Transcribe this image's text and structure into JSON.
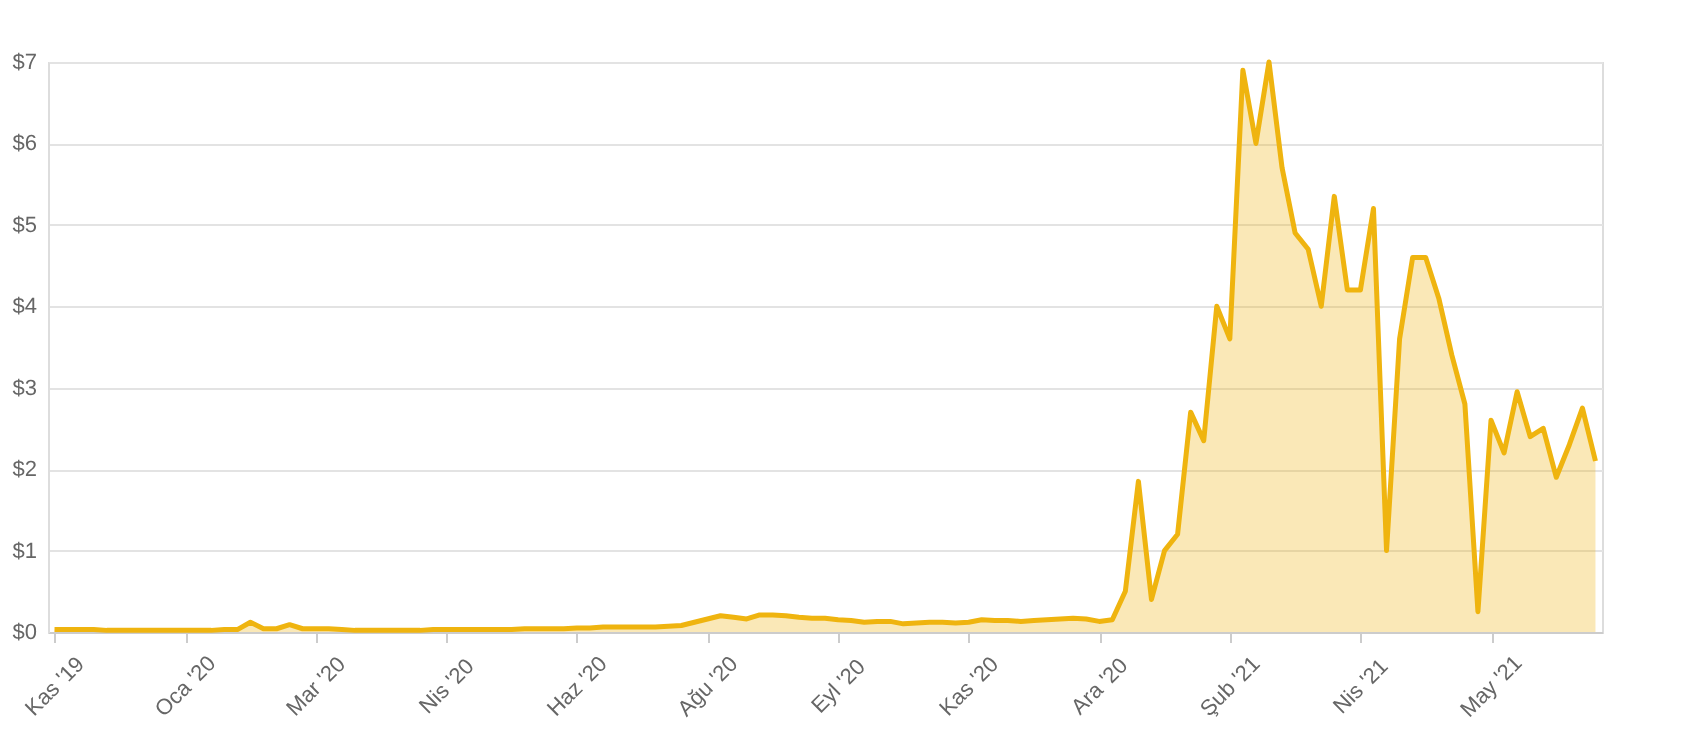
{
  "chart_data": {
    "type": "area",
    "grid": "y",
    "categories": [
      "Kas '19",
      null,
      null,
      null,
      null,
      null,
      null,
      null,
      null,
      null,
      "Oca '20",
      null,
      null,
      null,
      null,
      null,
      null,
      null,
      null,
      null,
      "Mar '20",
      null,
      null,
      null,
      null,
      null,
      null,
      null,
      null,
      null,
      "Nis '20",
      null,
      null,
      null,
      null,
      null,
      null,
      null,
      null,
      null,
      "Haz '20",
      null,
      null,
      null,
      null,
      null,
      null,
      null,
      null,
      null,
      "Ağu '20",
      null,
      null,
      null,
      null,
      null,
      null,
      null,
      null,
      null,
      "Eyl '20",
      null,
      null,
      null,
      null,
      null,
      null,
      null,
      null,
      null,
      "Kas '20",
      null,
      null,
      null,
      null,
      null,
      null,
      null,
      null,
      null,
      "Ara '20",
      null,
      null,
      null,
      null,
      null,
      null,
      null,
      null,
      null,
      "Şub '21",
      null,
      null,
      null,
      null,
      null,
      null,
      null,
      null,
      null,
      "Nis '21",
      null,
      null,
      null,
      null,
      null,
      null,
      null,
      null,
      null,
      "May '21",
      null,
      null,
      null,
      null,
      null,
      null,
      null,
      null
    ],
    "ylim": [
      0,
      7
    ],
    "yticks": [
      {
        "value": 0,
        "label": "$0"
      },
      {
        "value": 1,
        "label": "$1"
      },
      {
        "value": 2,
        "label": "$2"
      },
      {
        "value": 3,
        "label": "$3"
      },
      {
        "value": 4,
        "label": "$4"
      },
      {
        "value": 5,
        "label": "$5"
      },
      {
        "value": 6,
        "label": "$6"
      },
      {
        "value": 7,
        "label": "$7"
      }
    ],
    "series": [
      {
        "color": "#efb40f",
        "values": [
          0.03,
          0.03,
          0.03,
          0.03,
          0.02,
          0.02,
          0.02,
          0.02,
          0.02,
          0.02,
          0.02,
          0.02,
          0.02,
          0.03,
          0.03,
          0.12,
          0.04,
          0.04,
          0.09,
          0.04,
          0.04,
          0.04,
          0.03,
          0.02,
          0.02,
          0.02,
          0.02,
          0.02,
          0.02,
          0.03,
          0.03,
          0.03,
          0.03,
          0.03,
          0.03,
          0.03,
          0.04,
          0.04,
          0.04,
          0.04,
          0.05,
          0.05,
          0.06,
          0.06,
          0.06,
          0.06,
          0.06,
          0.07,
          0.08,
          0.12,
          0.16,
          0.2,
          0.18,
          0.16,
          0.21,
          0.21,
          0.2,
          0.18,
          0.17,
          0.17,
          0.15,
          0.14,
          0.12,
          0.13,
          0.13,
          0.1,
          0.11,
          0.12,
          0.12,
          0.11,
          0.12,
          0.15,
          0.14,
          0.14,
          0.13,
          0.14,
          0.15,
          0.16,
          0.17,
          0.16,
          0.13,
          0.15,
          0.5,
          1.85,
          0.4,
          1.0,
          1.2,
          2.7,
          2.35,
          4.0,
          3.6,
          6.9,
          6.0,
          7.0,
          5.7,
          4.9,
          4.7,
          4.0,
          5.35,
          4.2,
          4.2,
          5.2,
          1.0,
          3.6,
          4.6,
          4.6,
          4.1,
          3.4,
          2.8,
          0.25,
          2.6,
          2.2,
          2.95,
          2.4,
          2.5,
          1.9,
          2.3,
          2.75,
          2.1
        ]
      }
    ]
  }
}
